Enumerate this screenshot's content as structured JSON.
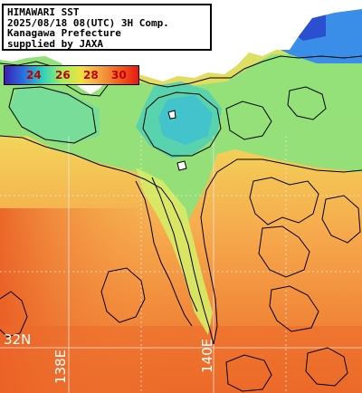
{
  "title_lines": [
    "HIMAWARI SST",
    "2025/08/18 08(UTC) 3H Comp.",
    "Kanagawa Prefecture",
    "supplied by JAXA"
  ],
  "colorbar": {
    "ticks": [
      "24",
      "26",
      "28",
      "30"
    ],
    "colors": [
      "#3b1fb3",
      "#2a70e0",
      "#2fd0c0",
      "#9ef060",
      "#f0e040",
      "#f5a040",
      "#f06020",
      "#e81810"
    ],
    "tick_color": "#c00000"
  },
  "grid_labels": {
    "lat_label": "32N",
    "lon_label_1": "138E",
    "lon_label_2": "140E"
  },
  "colors": {
    "land": "#ffffff",
    "coastal_cool": "#3a8ee8",
    "sea_green": "#7ee07a",
    "sea_yellow": "#f0e070",
    "sea_orange": "#f59c48",
    "sea_red_orange": "#ec6a28",
    "contour": "#000000",
    "grid_line": "#e0e0e0"
  }
}
